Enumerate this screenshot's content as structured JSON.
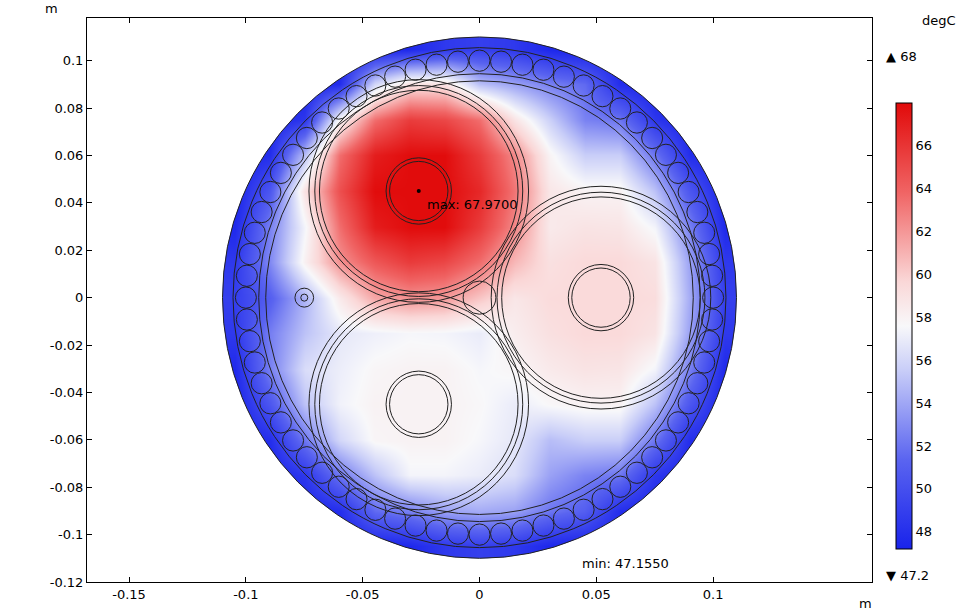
{
  "chart_data": {
    "type": "heatmap",
    "x_unit": "m",
    "y_unit": "m",
    "color_title": "degC",
    "color_ends": [
      {
        "value": 47.2,
        "label": "▼ 47.2"
      },
      {
        "value": 68,
        "label": "▲ 68"
      }
    ],
    "color_ticks": [
      48,
      50,
      52,
      54,
      56,
      58,
      60,
      62,
      64,
      66
    ],
    "xlim": [
      -0.168,
      0.168
    ],
    "ylim": [
      -0.12,
      0.118
    ],
    "xticks": [
      -0.15,
      -0.1,
      -0.05,
      0,
      0.05,
      0.1
    ],
    "yticks": [
      -0.12,
      -0.1,
      -0.08,
      -0.06,
      -0.04,
      -0.02,
      0,
      0.02,
      0.04,
      0.06,
      0.08,
      0.1
    ],
    "grid": false,
    "x": [
      -0.105,
      -0.09,
      -0.075,
      -0.06,
      -0.045,
      -0.03,
      -0.015,
      0,
      0.015,
      0.03,
      0.045,
      0.06,
      0.075,
      0.09,
      0.105
    ],
    "y": [
      -0.105,
      -0.09,
      -0.075,
      -0.06,
      -0.045,
      -0.03,
      -0.015,
      0,
      0.015,
      0.03,
      0.045,
      0.06,
      0.075,
      0.09,
      0.105
    ],
    "cells": [
      [
        null,
        null,
        47.2,
        47.2,
        47.2,
        47.5,
        48.6,
        49.0,
        48.6,
        47.5,
        47.2,
        47.2,
        47.2,
        null,
        null
      ],
      [
        null,
        47.2,
        47.2,
        47.9,
        51.6,
        52.5,
        53.8,
        54.2,
        53.8,
        52.1,
        51.0,
        47.9,
        47.2,
        47.2,
        null
      ],
      [
        47.2,
        47.2,
        48.5,
        52.1,
        55.1,
        57.4,
        57.4,
        57.0,
        56.3,
        53.8,
        52.6,
        52.1,
        48.5,
        47.2,
        47.2
      ],
      [
        47.2,
        47.9,
        52.1,
        56.0,
        57.8,
        58.0,
        58.0,
        57.5,
        56.8,
        54.9,
        55.6,
        55.6,
        52.1,
        47.9,
        47.2
      ],
      [
        47.2,
        50.5,
        55.1,
        57.3,
        58.0,
        58.0,
        58.0,
        57.7,
        57.0,
        57.7,
        58.0,
        58.0,
        55.1,
        50.5,
        47.2
      ],
      [
        47.6,
        52.5,
        56.3,
        57.1,
        57.8,
        58.0,
        58.0,
        57.5,
        57.8,
        58.5,
        58.9,
        58.8,
        57.4,
        52.5,
        47.6
      ],
      [
        48.6,
        52.4,
        55.1,
        56.8,
        57.2,
        57.5,
        57.4,
        57.0,
        58.3,
        59.1,
        59.5,
        59.5,
        58.9,
        53.8,
        48.6
      ],
      [
        49.0,
        51.0,
        54.5,
        58.5,
        61.4,
        62.2,
        61.9,
        60.3,
        58.7,
        59.4,
        59.5,
        59.5,
        59.3,
        54.2,
        49.0
      ],
      [
        48.6,
        52.8,
        58.1,
        62.2,
        64.4,
        65.7,
        65.2,
        63.5,
        60.8,
        59.1,
        59.5,
        59.5,
        58.9,
        53.8,
        48.6
      ],
      [
        47.6,
        52.5,
        57.4,
        63.5,
        67.1,
        67.9,
        67.9,
        65.7,
        62.5,
        58.5,
        58.9,
        58.8,
        57.4,
        52.5,
        47.6
      ],
      [
        47.2,
        50.5,
        59.0,
        64.8,
        67.9,
        67.9,
        67.9,
        66.6,
        63.2,
        58.7,
        58.0,
        58.0,
        55.1,
        50.5,
        47.2
      ],
      [
        47.2,
        47.9,
        55.0,
        63.5,
        67.1,
        67.9,
        67.9,
        65.7,
        62.5,
        57.9,
        55.6,
        55.6,
        52.1,
        47.9,
        47.2
      ],
      [
        47.2,
        47.2,
        48.5,
        58.0,
        63.5,
        65.7,
        65.2,
        63.5,
        58.9,
        55.7,
        52.6,
        52.1,
        48.5,
        47.2,
        47.2
      ],
      [
        null,
        47.2,
        47.2,
        47.9,
        56.0,
        59.0,
        59.0,
        55.0,
        53.8,
        52.5,
        51.6,
        47.9,
        47.2,
        47.2,
        null
      ],
      [
        null,
        null,
        47.2,
        47.2,
        47.2,
        47.5,
        48.6,
        49.0,
        48.6,
        47.5,
        47.2,
        47.2,
        47.2,
        null,
        null
      ]
    ],
    "extrema": [
      {
        "label": "max: 67.9700",
        "x": -0.026,
        "y": 0.045
      },
      {
        "label": "min: 47.1550",
        "x": 0.038,
        "y": -0.1047
      }
    ],
    "outlines": {
      "circles": [
        {
          "x": 0,
          "y": 0,
          "r": [
            0.11,
            0.1055,
            0.0945,
            0.0915
          ]
        },
        {
          "x": -0.026,
          "y": 0.045,
          "r": [
            0.047,
            0.0445,
            0.0425,
            0.014,
            0.0125
          ]
        },
        {
          "x": 0.052,
          "y": 0,
          "r": [
            0.047,
            0.0445,
            0.0425,
            0.014,
            0.0125
          ]
        },
        {
          "x": -0.026,
          "y": -0.045,
          "r": [
            0.047,
            0.0445,
            0.0425,
            0.014,
            0.0125
          ]
        },
        {
          "x": -0.075,
          "y": 0,
          "r": [
            0.004,
            0.0015
          ]
        },
        {
          "x": 0,
          "y": 0,
          "r": [
            0.007
          ]
        }
      ],
      "armor": {
        "count": 68,
        "ring_r": 0.1,
        "wire_r": 0.0045
      }
    }
  }
}
